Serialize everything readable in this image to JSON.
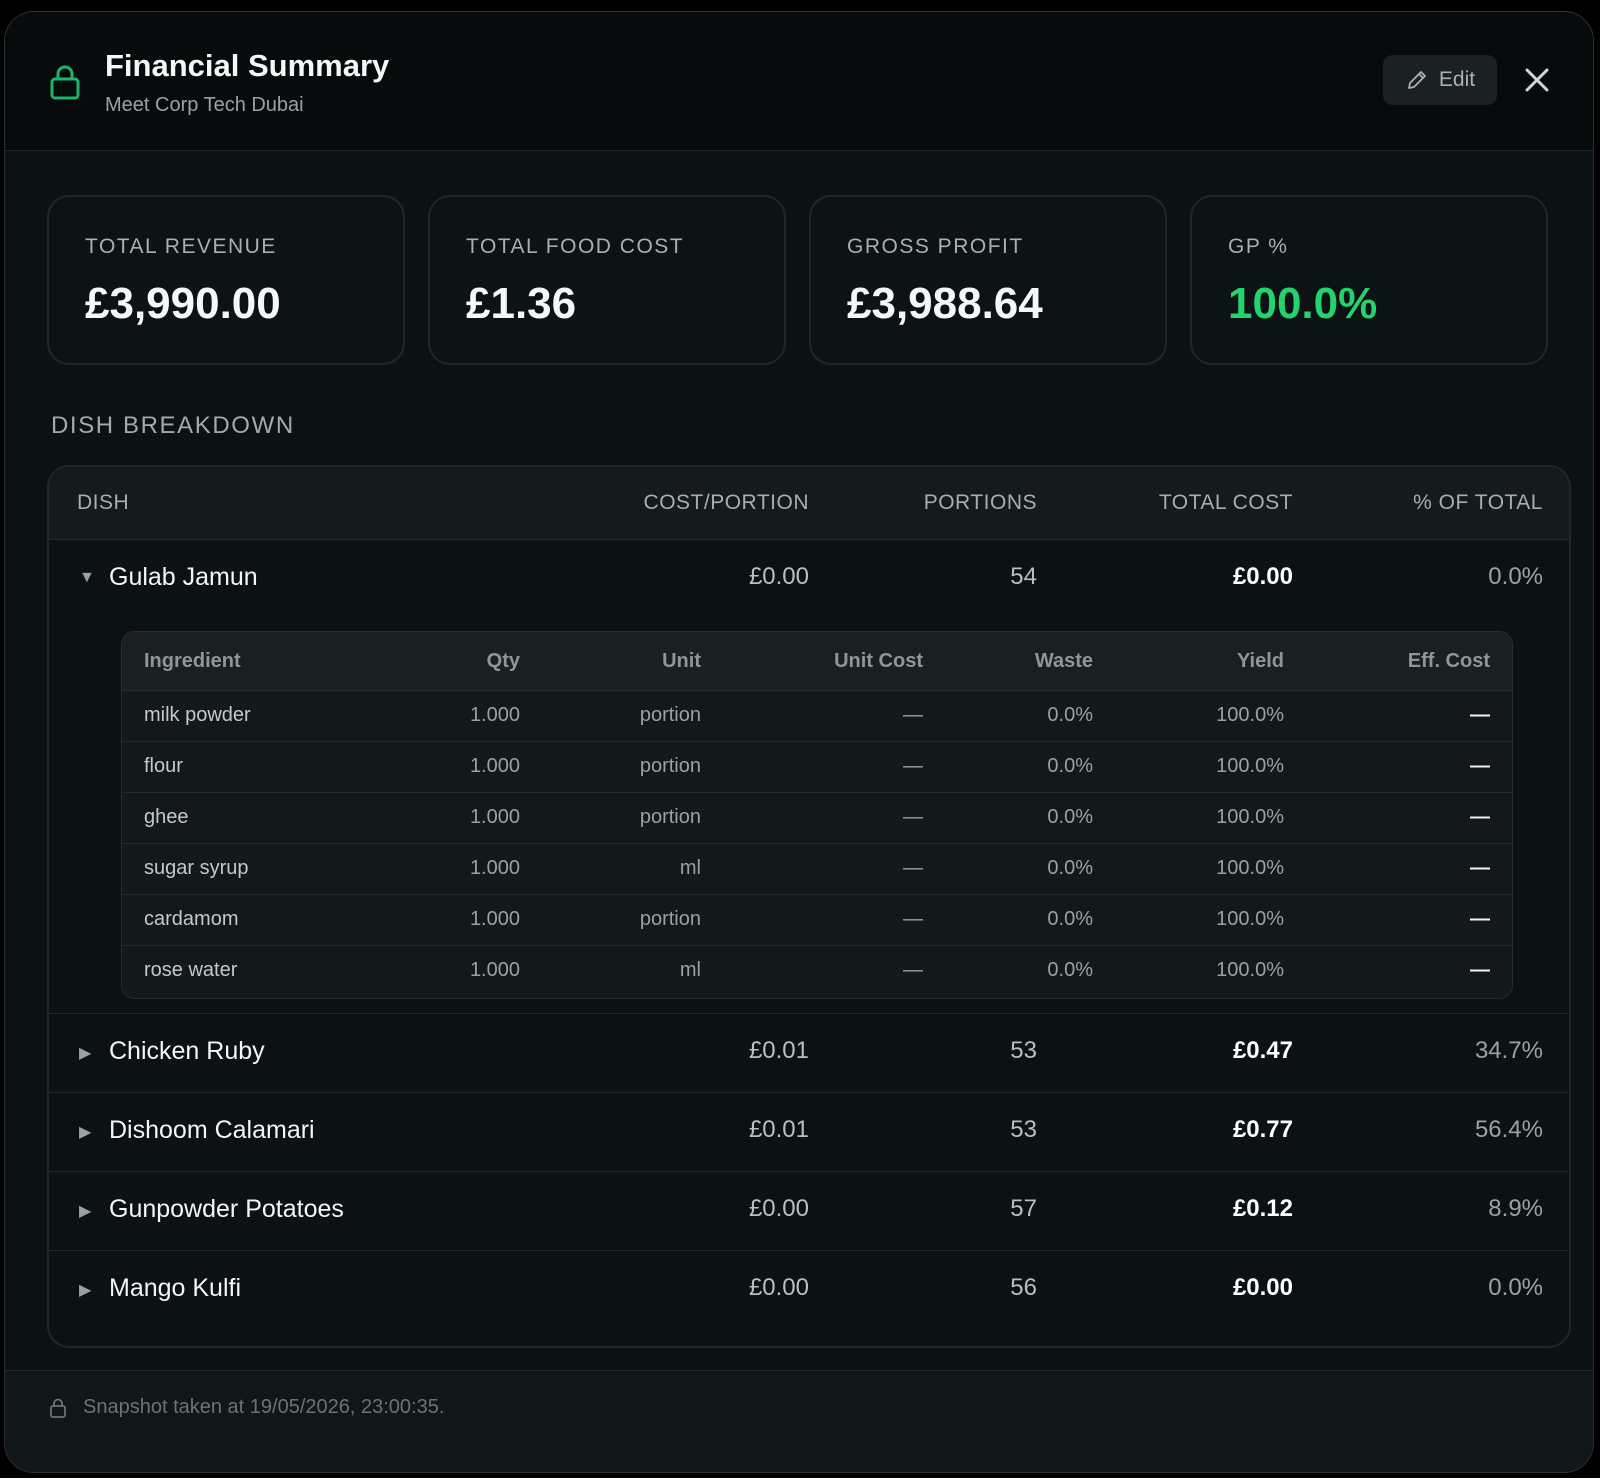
{
  "header": {
    "title": "Financial Summary",
    "subtitle": "Meet Corp Tech Dubai",
    "edit_label": "Edit",
    "icons": {
      "lock": "lock-icon",
      "edit": "pencil-icon",
      "close": "close-icon"
    },
    "accent_color": "#1db36a"
  },
  "cards": [
    {
      "label": "TOTAL REVENUE",
      "value": "£3,990.00",
      "color": "#f6f7f8"
    },
    {
      "label": "TOTAL FOOD COST",
      "value": "£1.36",
      "color": "#f6f7f8"
    },
    {
      "label": "GROSS PROFIT",
      "value": "£3,988.64",
      "color": "#f6f7f8"
    },
    {
      "label": "GP %",
      "value": "100.0%",
      "color": "#22d36e"
    }
  ],
  "breakdown": {
    "title": "DISH BREAKDOWN",
    "columns": {
      "dish": "DISH",
      "cost_portion": "COST/PORTION",
      "portions": "PORTIONS",
      "total_cost": "TOTAL COST",
      "pct_total": "% OF TOTAL"
    },
    "dishes": [
      {
        "name": "Gulab Jamun",
        "expanded": true,
        "cost_portion": "£0.00",
        "portions": "54",
        "total_cost": "£0.00",
        "pct_total": "0.0%"
      },
      {
        "name": "Chicken Ruby",
        "expanded": false,
        "cost_portion": "£0.01",
        "portions": "53",
        "total_cost": "£0.47",
        "pct_total": "34.7%"
      },
      {
        "name": "Dishoom Calamari",
        "expanded": false,
        "cost_portion": "£0.01",
        "portions": "53",
        "total_cost": "£0.77",
        "pct_total": "56.4%"
      },
      {
        "name": "Gunpowder Potatoes",
        "expanded": false,
        "cost_portion": "£0.00",
        "portions": "57",
        "total_cost": "£0.12",
        "pct_total": "8.9%"
      },
      {
        "name": "Mango Kulfi",
        "expanded": false,
        "cost_portion": "£0.00",
        "portions": "56",
        "total_cost": "£0.00",
        "pct_total": "0.0%"
      }
    ],
    "ingredient_columns": {
      "ingredient": "Ingredient",
      "qty": "Qty",
      "unit": "Unit",
      "unit_cost": "Unit Cost",
      "waste": "Waste",
      "yield": "Yield",
      "eff_cost": "Eff. Cost"
    },
    "ingredients": [
      {
        "ingredient": "milk powder",
        "qty": "1.000",
        "unit": "portion",
        "unit_cost": "—",
        "waste": "0.0%",
        "yield": "100.0%",
        "eff_cost": "—"
      },
      {
        "ingredient": "flour",
        "qty": "1.000",
        "unit": "portion",
        "unit_cost": "—",
        "waste": "0.0%",
        "yield": "100.0%",
        "eff_cost": "—"
      },
      {
        "ingredient": "ghee",
        "qty": "1.000",
        "unit": "portion",
        "unit_cost": "—",
        "waste": "0.0%",
        "yield": "100.0%",
        "eff_cost": "—"
      },
      {
        "ingredient": "sugar syrup",
        "qty": "1.000",
        "unit": "ml",
        "unit_cost": "—",
        "waste": "0.0%",
        "yield": "100.0%",
        "eff_cost": "—"
      },
      {
        "ingredient": "cardamom",
        "qty": "1.000",
        "unit": "portion",
        "unit_cost": "—",
        "waste": "0.0%",
        "yield": "100.0%",
        "eff_cost": "—"
      },
      {
        "ingredient": "rose water",
        "qty": "1.000",
        "unit": "ml",
        "unit_cost": "—",
        "waste": "0.0%",
        "yield": "100.0%",
        "eff_cost": "—"
      }
    ],
    "caret_expanded": "▼",
    "caret_collapsed": "▶"
  },
  "footer": {
    "text": "Snapshot taken at 19/05/2026, 23:00:35."
  }
}
